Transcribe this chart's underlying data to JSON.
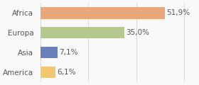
{
  "categories": [
    "Africa",
    "Europa",
    "Asia",
    "America"
  ],
  "values": [
    51.9,
    35.0,
    7.1,
    6.1
  ],
  "labels": [
    "51,9%",
    "35,0%",
    "7,1%",
    "6,1%"
  ],
  "bar_colors": [
    "#e8a87c",
    "#b5c98e",
    "#6b7fbd",
    "#f0c96e"
  ],
  "background_color": "#f9f9f9",
  "xlim": [
    0,
    65
  ],
  "label_fontsize": 7.5,
  "tick_fontsize": 7.5
}
